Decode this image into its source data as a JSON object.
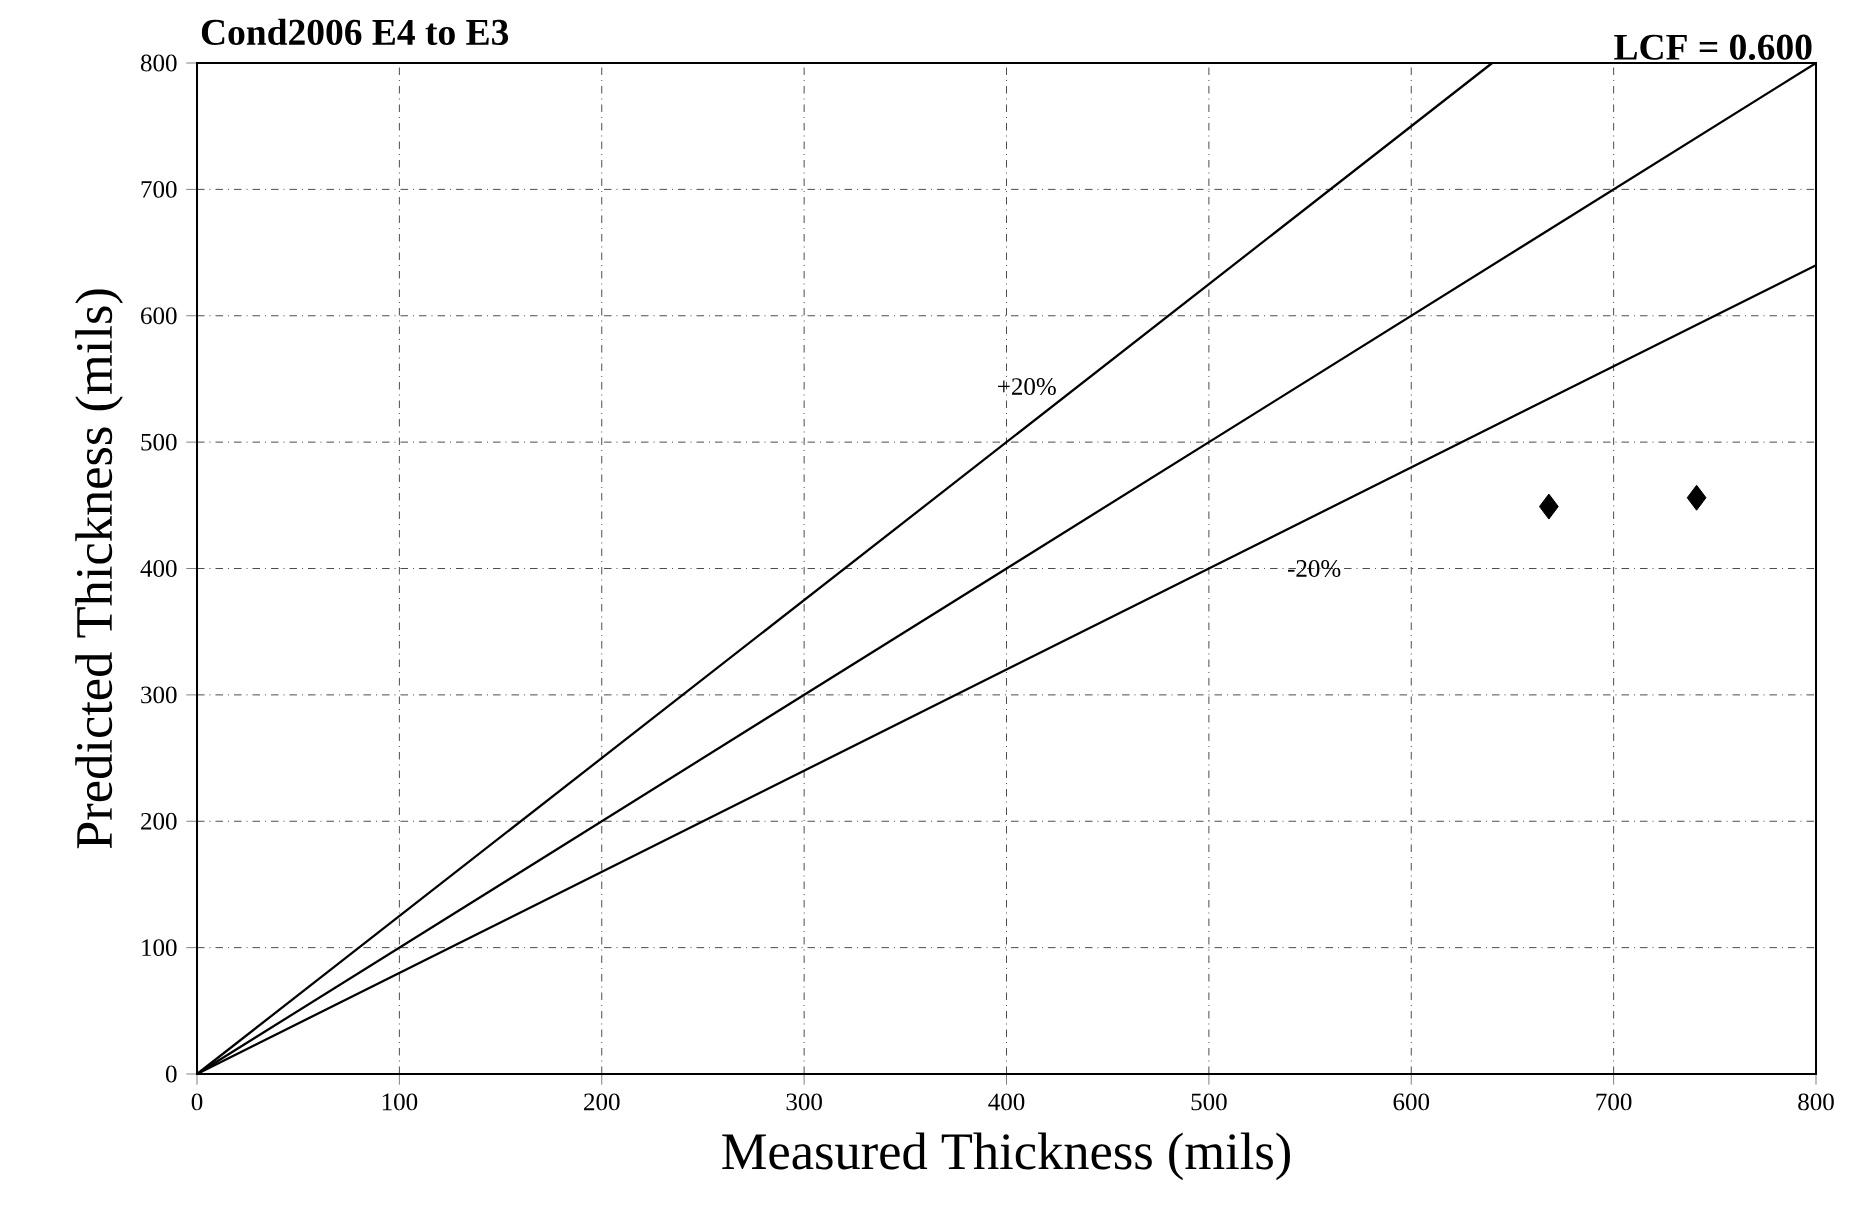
{
  "chart_data": {
    "type": "scatter",
    "title": "Cond2006 E4 to E3",
    "xlabel": "Measured Thickness (mils)",
    "ylabel": "Predicted Thickness (mils)",
    "xlim": [
      0,
      800
    ],
    "ylim": [
      0,
      800
    ],
    "xticks": [
      0,
      100,
      200,
      300,
      400,
      500,
      600,
      700,
      800
    ],
    "yticks": [
      0,
      100,
      200,
      300,
      400,
      500,
      600,
      700,
      800
    ],
    "grid": true,
    "marker": "diamond",
    "series": [
      {
        "type": "line",
        "color": "#000000",
        "x": [
          0,
          640
        ],
        "values": [
          0,
          800
        ],
        "marker": "none",
        "line_style": "solid"
      },
      {
        "type": "line",
        "color": "#000000",
        "x": [
          0,
          800
        ],
        "values": [
          0,
          800
        ],
        "marker": "none",
        "line_style": "solid"
      },
      {
        "type": "line",
        "color": "#000000",
        "x": [
          0,
          800
        ],
        "values": [
          0,
          640
        ],
        "marker": "none",
        "line_style": "solid"
      },
      {
        "color": "#000000",
        "x": [
          668,
          741
        ],
        "values": [
          449,
          456
        ]
      }
    ],
    "annotations": [
      "LCF = 0.600",
      "+20%",
      "-20%"
    ]
  }
}
